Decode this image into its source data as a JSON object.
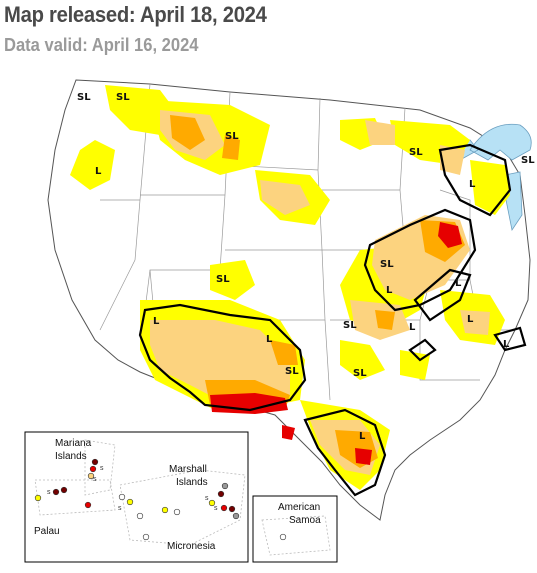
{
  "header": {
    "released": "Map released: April 18, 2024",
    "valid": "Data valid: April 16, 2024"
  },
  "impact_labels": {
    "sl": "SL",
    "l": "L"
  },
  "inset": {
    "mariana": "Mariana",
    "islands1": "Islands",
    "marshall": "Marshall",
    "islands2": "Islands",
    "palau": "Palau",
    "micronesia": "Micronesia",
    "american": "American",
    "samoa": "Samoa",
    "station_label": "s"
  },
  "colors": {
    "d0_abnormally_dry": "#ffff00",
    "d1_moderate": "#fcd37f",
    "d2_severe": "#ffaa00",
    "d3_extreme": "#e60000",
    "d4_exceptional": "#730000",
    "water": "#b7e1f5",
    "boundary": "#000000"
  }
}
